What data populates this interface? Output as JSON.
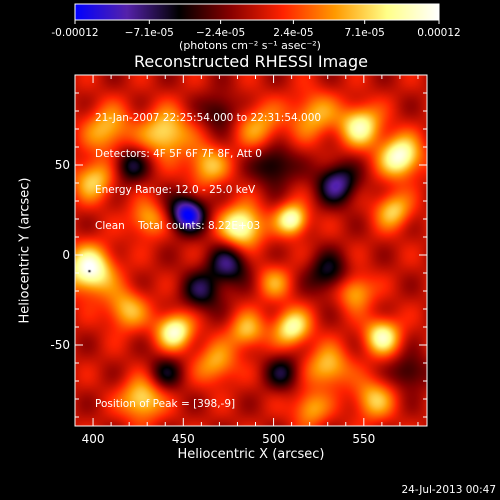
{
  "chart_data": {
    "type": "heatmap",
    "title": "Reconstructed RHESSI Image",
    "xlabel": "Heliocentric X (arcsec)",
    "ylabel": "Heliocentric Y (arcsec)",
    "xlim": [
      390,
      585
    ],
    "ylim": [
      -95,
      100
    ],
    "x_ticks": [
      400,
      450,
      500,
      550
    ],
    "y_ticks": [
      -50,
      0,
      50
    ],
    "colorbar": {
      "min": -0.00012,
      "max": 0.00012,
      "tick_labels": [
        "-0.00012",
        "−7.1e-05",
        "−2.4e-05",
        "2.4e-05",
        "7.1e-05",
        "0.00012"
      ],
      "tick_values": [
        -0.00012,
        -7.1e-05,
        -2.4e-05,
        2.4e-05,
        7.1e-05,
        0.00012
      ],
      "colors": [
        "#0000ff",
        "#5522aa",
        "#000000",
        "#880000",
        "#ff2200",
        "#ff9900",
        "#ffff88",
        "#ffffff"
      ],
      "unit_label": "(photons cm⁻² s⁻¹ asec⁻²)"
    },
    "annotations": [
      "21-Jan-2007 22:25:54.000 to 22:31:54.000",
      "Detectors: 4F 5F 6F 7F 8F, Att 0",
      "Energy Range: 12.0 - 25.0 keV",
      "Clean    Total counts: 8.22E+03"
    ],
    "peak_label": "Position of Peak = [398,-9]",
    "peak": [
      398,
      -9
    ],
    "blobs": [
      {
        "x": 398,
        "y": -8,
        "v": 1.0,
        "s": 9
      },
      {
        "x": 400,
        "y": 42,
        "v": 0.6,
        "s": 8
      },
      {
        "x": 408,
        "y": 70,
        "v": 0.55,
        "s": 9
      },
      {
        "x": 440,
        "y": 68,
        "v": 0.7,
        "s": 9
      },
      {
        "x": 463,
        "y": 50,
        "v": 0.55,
        "s": 8
      },
      {
        "x": 482,
        "y": 16,
        "v": 0.95,
        "s": 8
      },
      {
        "x": 492,
        "y": 72,
        "v": 0.45,
        "s": 9
      },
      {
        "x": 522,
        "y": 78,
        "v": 0.5,
        "s": 9
      },
      {
        "x": 548,
        "y": 72,
        "v": 0.8,
        "s": 8
      },
      {
        "x": 570,
        "y": 55,
        "v": 0.95,
        "s": 8
      },
      {
        "x": 566,
        "y": 25,
        "v": 0.6,
        "s": 7
      },
      {
        "x": 510,
        "y": 20,
        "v": 0.9,
        "s": 6
      },
      {
        "x": 430,
        "y": 20,
        "v": 0.5,
        "s": 7
      },
      {
        "x": 418,
        "y": -30,
        "v": 0.55,
        "s": 8
      },
      {
        "x": 427,
        "y": -80,
        "v": 0.7,
        "s": 8
      },
      {
        "x": 445,
        "y": -42,
        "v": 0.9,
        "s": 7
      },
      {
        "x": 468,
        "y": -60,
        "v": 0.5,
        "s": 8
      },
      {
        "x": 485,
        "y": -42,
        "v": 0.55,
        "s": 7
      },
      {
        "x": 510,
        "y": -40,
        "v": 0.8,
        "s": 7
      },
      {
        "x": 530,
        "y": -62,
        "v": 0.6,
        "s": 8
      },
      {
        "x": 545,
        "y": -20,
        "v": 0.55,
        "s": 7
      },
      {
        "x": 560,
        "y": -45,
        "v": 0.8,
        "s": 7
      },
      {
        "x": 555,
        "y": -80,
        "v": 0.55,
        "s": 8
      },
      {
        "x": 520,
        "y": -85,
        "v": 0.5,
        "s": 7
      },
      {
        "x": 500,
        "y": -15,
        "v": 0.4,
        "s": 7
      },
      {
        "x": 452,
        "y": 23,
        "v": -1.0,
        "s": 7
      },
      {
        "x": 475,
        "y": -5,
        "v": -0.6,
        "s": 8
      },
      {
        "x": 420,
        "y": 50,
        "v": -0.5,
        "s": 7
      },
      {
        "x": 535,
        "y": 40,
        "v": -0.7,
        "s": 8
      },
      {
        "x": 530,
        "y": -10,
        "v": -0.5,
        "s": 8
      },
      {
        "x": 460,
        "y": -20,
        "v": -0.5,
        "s": 8
      },
      {
        "x": 500,
        "y": 50,
        "v": -0.5,
        "s": 8
      },
      {
        "x": 575,
        "y": -65,
        "v": -0.4,
        "s": 7
      },
      {
        "x": 440,
        "y": -65,
        "v": -0.4,
        "s": 7
      },
      {
        "x": 505,
        "y": -65,
        "v": -0.45,
        "s": 7
      },
      {
        "x": 470,
        "y": 80,
        "v": -0.4,
        "s": 7
      }
    ]
  },
  "footer": {
    "timestamp": "24-Jul-2013 00:47"
  }
}
